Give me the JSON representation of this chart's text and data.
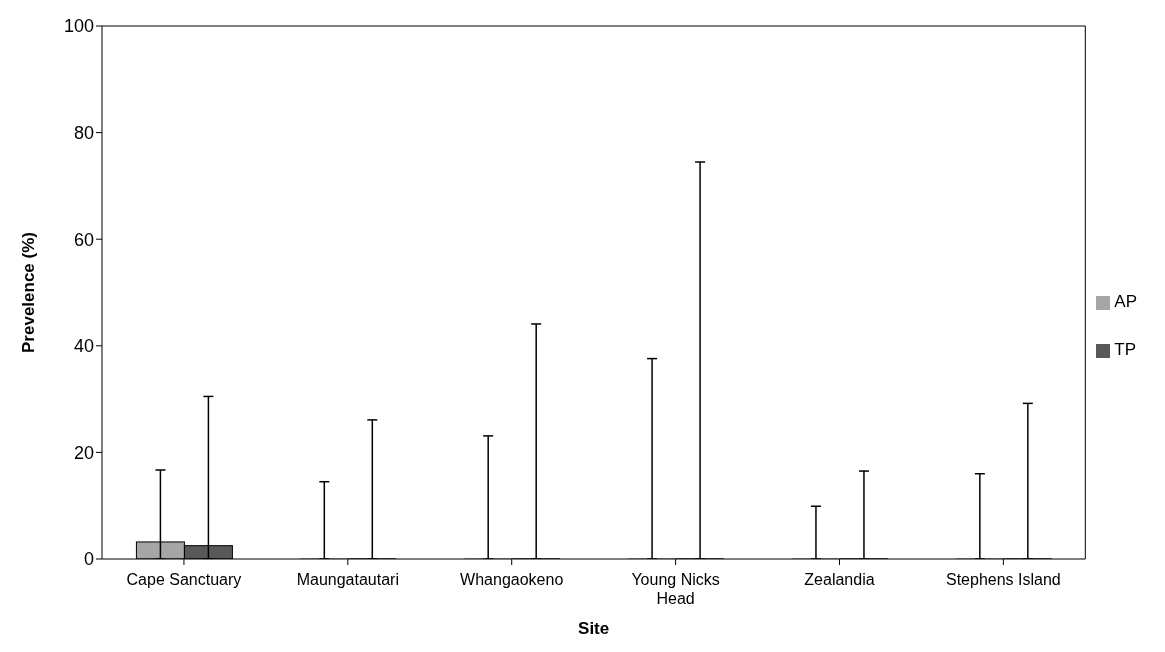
{
  "chart_data": {
    "type": "bar",
    "xlabel": "Site",
    "ylabel": "Prevelence (%)",
    "categories": [
      "Cape Sanctuary",
      "Maungatautari",
      "Whangaokeno",
      "Young Nicks Head",
      "Zealandia",
      "Stephens Island"
    ],
    "series": [
      {
        "name": "AP",
        "color": "#a6a6a6",
        "values": [
          3.2,
          0,
          0,
          0,
          0,
          0
        ],
        "errors": [
          [
            0,
            16.7
          ],
          [
            0,
            14.5
          ],
          [
            0,
            23.1
          ],
          [
            0,
            37.6
          ],
          [
            0,
            9.9
          ],
          [
            0,
            16.0
          ]
        ]
      },
      {
        "name": "TP",
        "color": "#595959",
        "values": [
          2.5,
          0,
          0,
          0,
          0,
          0
        ],
        "errors": [
          [
            0,
            30.5
          ],
          [
            0,
            26.1
          ],
          [
            0,
            44.1
          ],
          [
            0,
            74.5
          ],
          [
            0,
            16.5
          ],
          [
            0,
            29.2
          ]
        ]
      }
    ],
    "ylim": [
      0,
      100
    ],
    "yticks": [
      0,
      20,
      40,
      60,
      80,
      100
    ],
    "legend": "right"
  }
}
